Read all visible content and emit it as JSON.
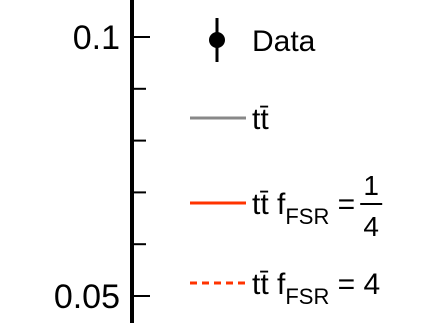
{
  "chart_data": {
    "type": "line",
    "title": "",
    "xlabel": "",
    "ylabel": "",
    "y_ticks": [
      {
        "value": 0.1,
        "label": "0.1"
      },
      {
        "value": 0.05,
        "label": "0.05"
      }
    ],
    "ylim_visible": [
      0.05,
      0.105
    ],
    "legend_placement": "top-right",
    "legend": [
      {
        "marker": "data-point",
        "label": "Data",
        "color": "#000000"
      },
      {
        "marker": "solid-line",
        "label": "tt̄",
        "color": "#888888"
      },
      {
        "marker": "solid-line",
        "label": "tt̄ f",
        "subscript": "FSR",
        "equals": " = ",
        "fraction": {
          "num": "1",
          "den": "4"
        },
        "color": "#ff3300"
      },
      {
        "marker": "dashed-line",
        "label": "tt̄ f",
        "subscript": "FSR",
        "equals": " = 4",
        "color": "#ff3300"
      }
    ]
  }
}
